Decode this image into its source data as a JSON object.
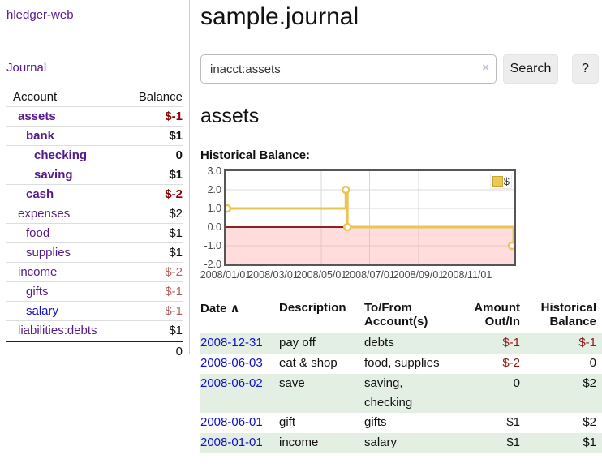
{
  "app": {
    "title": "hledger-web",
    "nav": "Journal"
  },
  "sidebar": {
    "columns": {
      "account": "Account",
      "balance": "Balance"
    },
    "rows": [
      {
        "name": "assets",
        "balance": "$-1",
        "indent": 1,
        "bold": true,
        "tone": "neg"
      },
      {
        "name": "bank",
        "balance": "$1",
        "indent": 2,
        "bold": true,
        "tone": "pos"
      },
      {
        "name": "checking",
        "balance": "0",
        "indent": 3,
        "bold": true,
        "tone": "pos"
      },
      {
        "name": "saving",
        "balance": "$1",
        "indent": 3,
        "bold": true,
        "tone": "pos"
      },
      {
        "name": "cash",
        "balance": "$-2",
        "indent": 2,
        "bold": true,
        "tone": "neg"
      },
      {
        "name": "expenses",
        "balance": "$2",
        "indent": 1,
        "bold": false,
        "tone": "pos"
      },
      {
        "name": "food",
        "balance": "$1",
        "indent": 2,
        "bold": false,
        "tone": "pos"
      },
      {
        "name": "supplies",
        "balance": "$1",
        "indent": 2,
        "bold": false,
        "tone": "pos"
      },
      {
        "name": "income",
        "balance": "$-2",
        "indent": 1,
        "bold": false,
        "tone": "neg-soft"
      },
      {
        "name": "gifts",
        "balance": "$-1",
        "indent": 2,
        "bold": false,
        "tone": "neg-soft"
      },
      {
        "name": "salary",
        "balance": "$-1",
        "indent": 2,
        "bold": false,
        "tone": "neg-soft",
        "link_tone": "blue"
      },
      {
        "name": "liabilities:debts",
        "balance": "$1",
        "indent": 1,
        "bold": false,
        "tone": "pos"
      }
    ],
    "total": "0"
  },
  "main": {
    "title": "sample.journal"
  },
  "search": {
    "value": "inacct:assets",
    "clear_icon": "×",
    "button_label": "Search",
    "help_label": "?"
  },
  "account_view": {
    "heading": "assets",
    "chart_title": "Historical Balance:"
  },
  "chart_data": {
    "type": "line",
    "step": true,
    "title": "Historical Balance",
    "series": [
      {
        "name": "$",
        "color": "#e9c556",
        "points": [
          [
            "2008-01-01",
            1
          ],
          [
            "2008-06-01",
            2
          ],
          [
            "2008-06-02",
            2
          ],
          [
            "2008-06-03",
            0
          ],
          [
            "2008-12-31",
            -1
          ]
        ]
      }
    ],
    "xrange": [
      "2008-01-01",
      "2008-12-31"
    ],
    "ylim": [
      -2,
      3
    ],
    "yticks": [
      "3.0",
      "2.0",
      "1.0",
      "0.0",
      "-1.0",
      "-2.0"
    ],
    "xticks": [
      {
        "label": "2008/01/01",
        "date": "2008-01-01"
      },
      {
        "label": "2008/03/01",
        "date": "2008-03-01"
      },
      {
        "label": "2008/05/01",
        "date": "2008-05-01"
      },
      {
        "label": "2008/07/01",
        "date": "2008-07-01"
      },
      {
        "label": "2008/09/01",
        "date": "2008-09-01"
      },
      {
        "label": "2008/11/01",
        "date": "2008-11-01"
      }
    ],
    "legend": {
      "label": "$",
      "position": "top-right"
    },
    "grid": true,
    "negative_region_color": "rgba(255,170,170,0.40)",
    "zero_line_color": "#8d2020",
    "grid_color": "#d8d8d8"
  },
  "register": {
    "header": {
      "date": "Date",
      "sort_icon": "∧",
      "description": "Description",
      "accounts": [
        "To/From",
        "Account(s)"
      ],
      "amount": [
        "Amount",
        "Out/In"
      ],
      "balance": [
        "Historical",
        "Balance"
      ]
    },
    "rows": [
      {
        "date": "2008-12-31",
        "description": "pay off",
        "accounts": "debts",
        "amount": "$-1",
        "balance": "$-1"
      },
      {
        "date": "2008-06-03",
        "description": "eat & shop",
        "accounts": "food, supplies",
        "amount": "$-2",
        "balance": "0"
      },
      {
        "date": "2008-06-02",
        "description": "save",
        "accounts": "saving, checking",
        "amount": "0",
        "balance": "$2"
      },
      {
        "date": "2008-06-01",
        "description": "gift",
        "accounts": "gifts",
        "amount": "$1",
        "balance": "$2"
      },
      {
        "date": "2008-01-01",
        "description": "income",
        "accounts": "salary",
        "amount": "$1",
        "balance": "$1"
      }
    ]
  }
}
